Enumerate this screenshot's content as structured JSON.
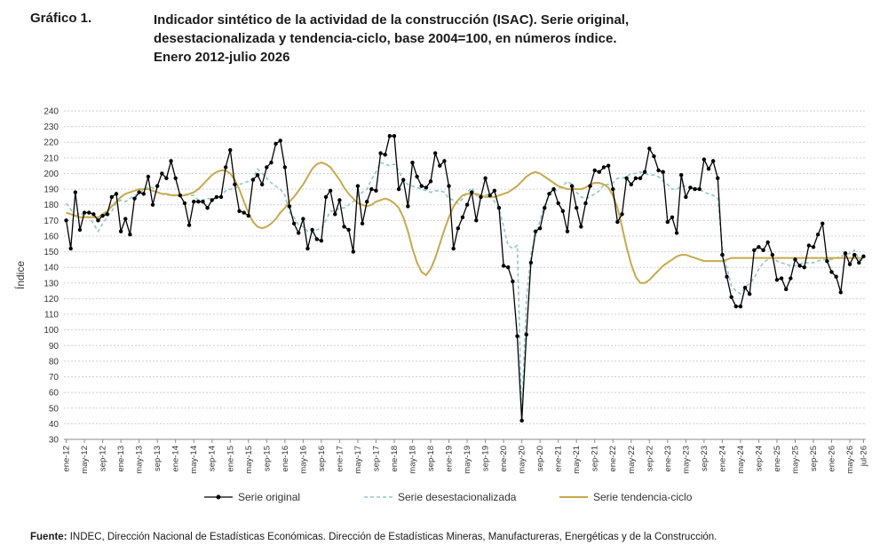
{
  "header": {
    "label": "Gráfico 1.",
    "title_lines": [
      "Indicador sintético de la actividad de la construcción (ISAC). Serie original,",
      "desestacionalizada y tendencia-ciclo, base 2004=100, en números índice.",
      "Enero 2012-julio 2026"
    ]
  },
  "footer": {
    "label": "Fuente:",
    "text": " INDEC, Dirección Nacional de Estadísticas Económicas. Dirección de Estadísticas Mineras, Manufactureras, Energéticas y de la Construcción."
  },
  "chart_data": {
    "type": "line",
    "ylabel": "Índice",
    "ylim": [
      30,
      240
    ],
    "yticks": [
      30,
      40,
      50,
      60,
      70,
      80,
      90,
      100,
      110,
      120,
      130,
      140,
      150,
      160,
      170,
      180,
      190,
      200,
      210,
      220,
      230,
      240
    ],
    "grid": "horizontal",
    "legend_position": "bottom",
    "x_tick_labels": [
      "ene-12",
      "may-12",
      "sep-12",
      "ene-13",
      "may-13",
      "sep-13",
      "ene-14",
      "may-14",
      "sep-14",
      "ene-15",
      "may-15",
      "sep-15",
      "ene-16",
      "may-16",
      "sep-16",
      "ene-17",
      "may-17",
      "sep-17",
      "ene-18",
      "may-18",
      "sep-18",
      "ene-19",
      "may-19",
      "sep-19",
      "ene-20",
      "may-20",
      "sep-20",
      "ene-21",
      "may-21",
      "sep-21",
      "ene-22",
      "may-22",
      "sep-22",
      "ene-23",
      "may-23",
      "sep-23",
      "ene-24",
      "may-24",
      "sep-24",
      "ene-25",
      "may-25",
      "sep-25",
      "ene-26",
      "may-26",
      "jul-26"
    ],
    "start": "ene-12",
    "series": [
      {
        "name": "Serie original",
        "color": "#000000",
        "values": [
          170,
          152,
          188,
          164,
          175,
          175,
          174,
          170,
          173,
          174,
          185,
          187,
          163,
          171,
          161,
          184,
          188,
          187,
          198,
          180,
          192,
          200,
          197,
          208,
          197,
          186,
          181,
          167,
          182,
          182,
          182,
          178,
          183,
          185,
          185,
          204,
          215,
          193,
          176,
          175,
          173,
          196,
          199,
          193,
          204,
          207,
          219,
          221,
          204,
          179,
          168,
          162,
          171,
          152,
          164,
          158,
          157,
          185,
          189,
          174,
          183,
          166,
          164,
          150,
          192,
          168,
          182,
          190,
          189,
          213,
          212,
          224,
          224,
          190,
          196,
          179,
          207,
          198,
          192,
          191,
          195,
          213,
          205,
          208,
          192,
          152,
          165,
          172,
          180,
          188,
          170,
          185,
          197,
          186,
          189,
          178,
          141,
          140,
          131,
          96,
          42,
          97,
          143,
          163,
          165,
          178,
          187,
          190,
          181,
          176,
          163,
          192,
          178,
          166,
          181,
          192,
          202,
          201,
          204,
          205,
          190,
          169,
          174,
          197,
          193,
          197,
          197,
          201,
          216,
          211,
          202,
          201,
          169,
          172,
          162,
          199,
          185,
          191,
          190,
          190,
          209,
          203,
          208,
          197,
          148,
          134,
          121,
          115,
          115,
          127,
          123,
          151,
          153,
          151,
          156,
          148,
          132,
          133,
          126,
          133,
          145,
          141,
          140,
          154,
          153,
          161,
          168,
          144,
          137,
          134,
          124,
          149,
          142,
          148,
          143,
          147
        ]
      },
      {
        "name": "Serie desestacionalizada",
        "color": "#8ec9c3",
        "values": [
          181,
          177,
          172,
          175,
          173,
          172,
          168,
          163,
          168,
          172,
          176,
          181,
          183,
          182,
          184,
          186,
          187,
          190,
          191,
          191,
          188,
          187,
          186,
          187,
          186,
          186,
          187,
          186,
          186,
          183,
          183,
          184,
          184,
          184,
          186,
          189,
          190,
          190,
          193,
          194,
          195,
          197,
          203,
          200,
          197,
          194,
          192,
          190,
          186,
          175,
          172,
          167,
          166,
          163,
          162,
          164,
          165,
          170,
          176,
          176,
          178,
          178,
          180,
          182,
          186,
          188,
          190,
          196,
          201,
          207,
          206,
          205,
          206,
          202,
          195,
          193,
          192,
          191,
          190,
          189,
          188,
          189,
          189,
          188,
          184,
          183,
          181,
          184,
          188,
          191,
          186,
          184,
          186,
          187,
          182,
          178,
          166,
          154,
          152,
          154,
          45,
          120,
          148,
          160,
          170,
          180,
          186,
          188,
          190,
          192,
          195,
          193,
          188,
          185,
          184,
          185,
          187,
          189,
          193,
          193,
          194,
          197,
          197,
          198,
          200,
          200,
          201,
          200,
          199,
          199,
          198,
          195,
          193,
          190,
          190,
          192,
          192,
          191,
          191,
          190,
          188,
          187,
          186,
          184,
          152,
          140,
          128,
          125,
          123,
          127,
          130,
          133,
          139,
          143,
          145,
          146,
          144,
          143,
          142,
          141,
          141,
          142,
          143,
          143,
          143,
          144,
          145,
          145,
          145,
          146,
          147,
          148,
          149,
          151,
          145,
          144
        ]
      },
      {
        "name": "Serie tendencia-ciclo",
        "color": "#c8a94a",
        "values": [
          175,
          174,
          173,
          172,
          172,
          172,
          172,
          172,
          174,
          176,
          179,
          182,
          185,
          187,
          188,
          189,
          190,
          190,
          190,
          189,
          188,
          187,
          187,
          186,
          186,
          186,
          186,
          187,
          188,
          190,
          193,
          196,
          199,
          201,
          202,
          202,
          200,
          196,
          190,
          182,
          175,
          169,
          166,
          165,
          166,
          168,
          171,
          175,
          178,
          182,
          185,
          189,
          193,
          198,
          203,
          206,
          207,
          206,
          204,
          200,
          196,
          191,
          187,
          184,
          181,
          180,
          179,
          180,
          182,
          183,
          184,
          183,
          181,
          178,
          172,
          163,
          152,
          143,
          137,
          135,
          139,
          146,
          155,
          164,
          172,
          179,
          183,
          186,
          187,
          187,
          187,
          186,
          185,
          185,
          185,
          186,
          187,
          188,
          190,
          192,
          195,
          198,
          200,
          201,
          200,
          198,
          196,
          194,
          192,
          191,
          190,
          190,
          190,
          190,
          191,
          193,
          194,
          194,
          193,
          191,
          186,
          178,
          166,
          153,
          142,
          134,
          130,
          130,
          132,
          135,
          138,
          141,
          143,
          145,
          147,
          148,
          148,
          147,
          146,
          145,
          144,
          144,
          144,
          144,
          144,
          145,
          146,
          146,
          146,
          146,
          146,
          146,
          146,
          146,
          146,
          146,
          146,
          146,
          146,
          146,
          146,
          146,
          146,
          146,
          146,
          146,
          146,
          146,
          146,
          146,
          146,
          146,
          146,
          146,
          146,
          146
        ]
      }
    ]
  }
}
